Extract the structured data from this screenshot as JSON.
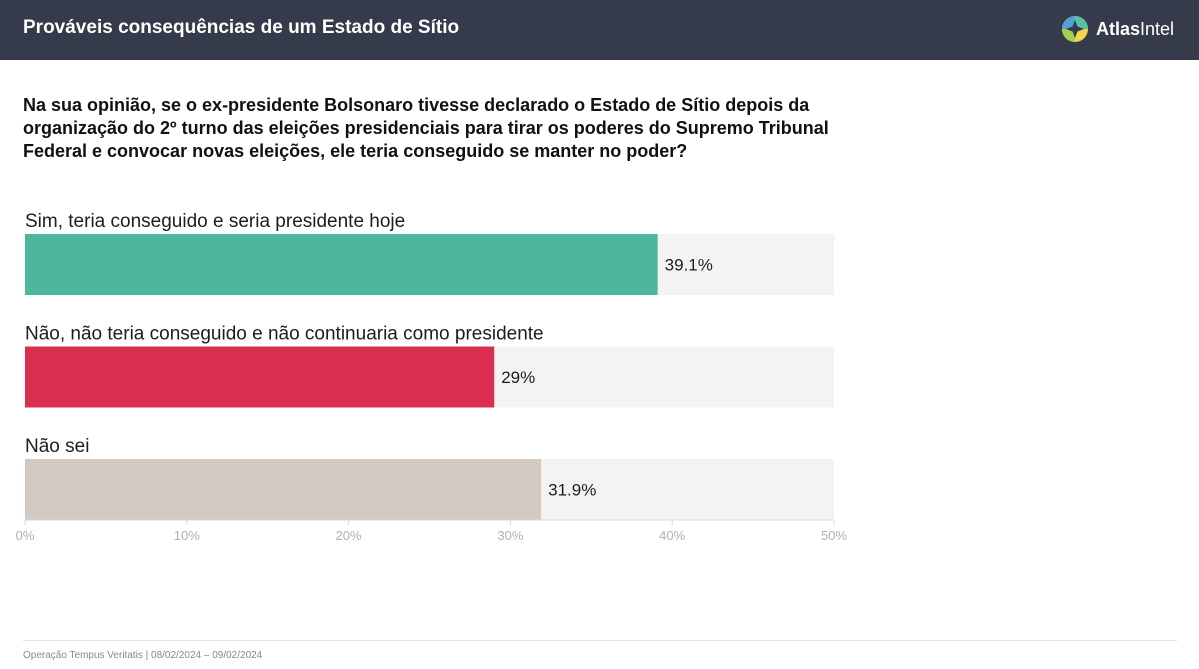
{
  "header": {
    "title": "Prováveis consequências de um Estado de Sítio",
    "brand_bold": "Atlas",
    "brand_light": "Intel"
  },
  "question": "Na sua opinião, se o ex-presidente Bolsonaro tivesse declarado o Estado de Sítio depois da organização do 2º turno das eleições presidenciais para tirar os poderes do Supremo Tribunal Federal e convocar novas eleições, ele teria conseguido se manter no poder?",
  "chart_data": {
    "type": "bar",
    "orientation": "horizontal",
    "categories": [
      "Sim, teria conseguido e seria presidente hoje",
      "Não, não teria conseguido e não continuaria como presidente",
      "Não sei"
    ],
    "values": [
      39.1,
      29,
      31.9
    ],
    "value_labels": [
      "39.1%",
      "29%",
      "31.9%"
    ],
    "colors": [
      "#4db69f",
      "#d92e4f",
      "#d3c9c3"
    ],
    "track_color": "#f3f3f1",
    "xlim": [
      0,
      50
    ],
    "ticks": [
      0,
      10,
      20,
      30,
      40,
      50
    ],
    "tick_labels": [
      "0%",
      "10%",
      "20%",
      "30%",
      "40%",
      "50%"
    ],
    "grid": false,
    "legend": "none"
  },
  "footer": {
    "note": "Operação Tempus Veritatis | 08/02/2024 – 09/02/2024"
  }
}
